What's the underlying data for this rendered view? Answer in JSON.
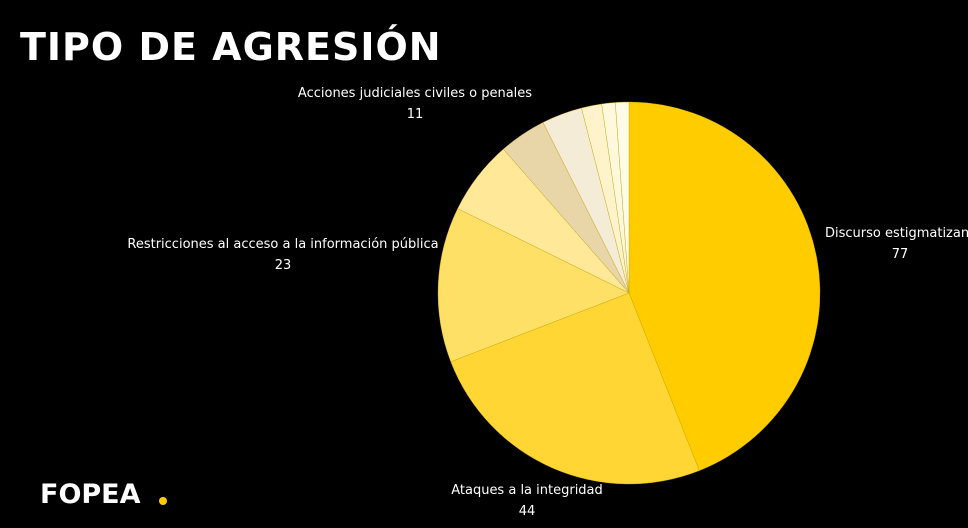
{
  "chart_data": {
    "type": "pie",
    "title": "TIPO DE AGRESIÓN",
    "logo": "FOPEA",
    "categories": [
      "Discurso estigmatizante",
      "Ataques a la integridad",
      "Restricciones al acceso a la información pública",
      "Acciones judiciales civiles o penales",
      null,
      null,
      null,
      null,
      null
    ],
    "values": [
      77,
      44,
      23,
      11,
      7,
      6,
      3,
      2,
      2
    ],
    "colors": [
      "#ffcc00",
      "#ffd633",
      "#ffe066",
      "#ffe999",
      "#e8d5a8",
      "#f5ecd8",
      "#fff3cc",
      "#fff8dd",
      "#fffbe8"
    ]
  }
}
